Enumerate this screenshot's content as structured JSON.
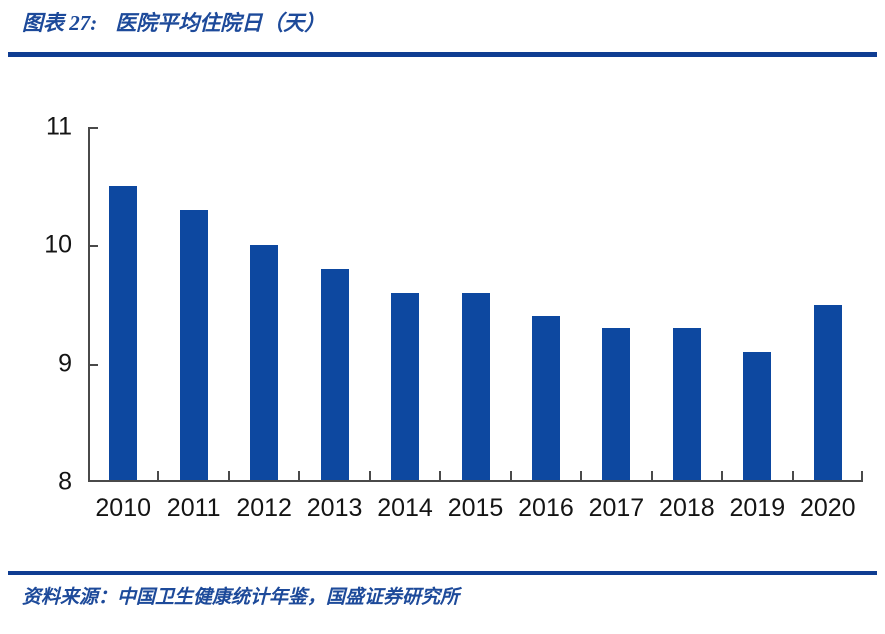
{
  "page": {
    "figure_label": "图表 27:",
    "figure_title": "医院平均住院日（天）",
    "source_text": "资料来源：中国卫生健康统计年鉴，国盛证券研究所"
  },
  "colors": {
    "bar": "#0D48A0",
    "rule": "#0F3D92",
    "heading_text": "#1D4A9A",
    "axis": "#4A4A4A",
    "tick_label": "#141414"
  },
  "chart_data": {
    "type": "bar",
    "title": "医院平均住院日（天）",
    "categories": [
      "2010",
      "2011",
      "2012",
      "2013",
      "2014",
      "2015",
      "2016",
      "2017",
      "2018",
      "2019",
      "2020"
    ],
    "values": [
      10.5,
      10.3,
      10.0,
      9.8,
      9.6,
      9.6,
      9.4,
      9.3,
      9.3,
      9.1,
      9.5
    ],
    "xlabel": "",
    "ylabel": "",
    "ylim": [
      8,
      11
    ],
    "yticks": [
      8,
      9,
      10,
      11
    ],
    "grid": false,
    "legend_position": "none",
    "bar_color": "#0D48A0"
  }
}
